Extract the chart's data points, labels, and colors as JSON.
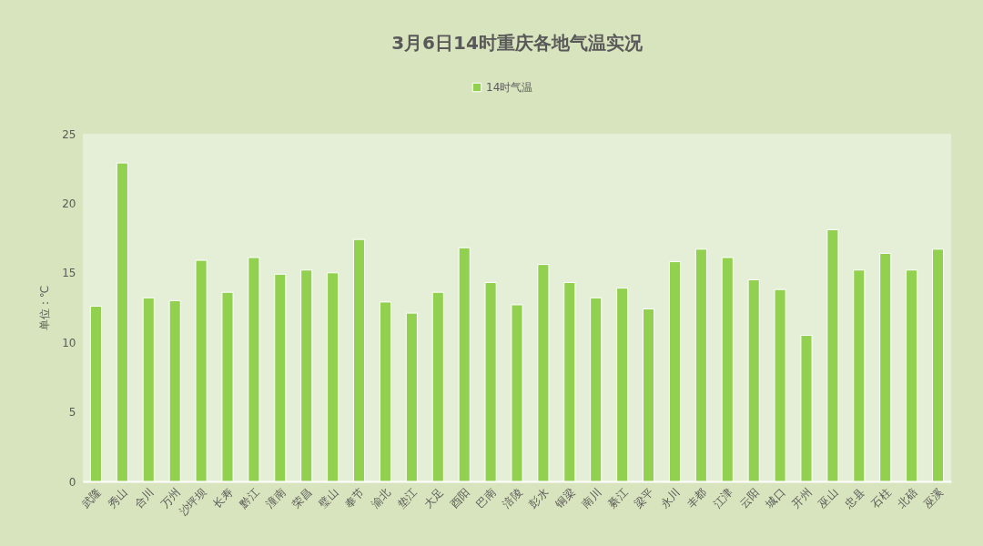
{
  "chart_data": {
    "type": "bar",
    "title": "3月6日14时重庆各地气温实况",
    "ylabel": "单位：℃",
    "categories": [
      "武隆",
      "秀山",
      "合川",
      "万州",
      "沙坪坝",
      "长寿",
      "黔江",
      "潼南",
      "荣昌",
      "璧山",
      "奉节",
      "渝北",
      "垫江",
      "大足",
      "酉阳",
      "巴南",
      "涪陵",
      "彭水",
      "铜梁",
      "南川",
      "綦江",
      "梁平",
      "永川",
      "丰都",
      "江津",
      "云阳",
      "城口",
      "开州",
      "巫山",
      "忠县",
      "石柱",
      "北碚",
      "巫溪"
    ],
    "series": [
      {
        "name": "14时气温",
        "color": "#92d050",
        "values": [
          12.6,
          22.9,
          13.2,
          13.0,
          15.9,
          13.6,
          16.1,
          14.9,
          15.2,
          15.0,
          17.4,
          12.9,
          12.1,
          13.6,
          16.8,
          14.3,
          12.7,
          15.6,
          14.3,
          13.2,
          13.9,
          12.4,
          15.8,
          16.7,
          16.1,
          14.5,
          13.8,
          10.5,
          18.1,
          15.2,
          16.4,
          15.2,
          16.7
        ]
      }
    ],
    "ylim": [
      0,
      25
    ],
    "yticks": [
      0,
      5,
      10,
      15,
      20,
      25
    ],
    "grid": false,
    "legend": "top"
  }
}
